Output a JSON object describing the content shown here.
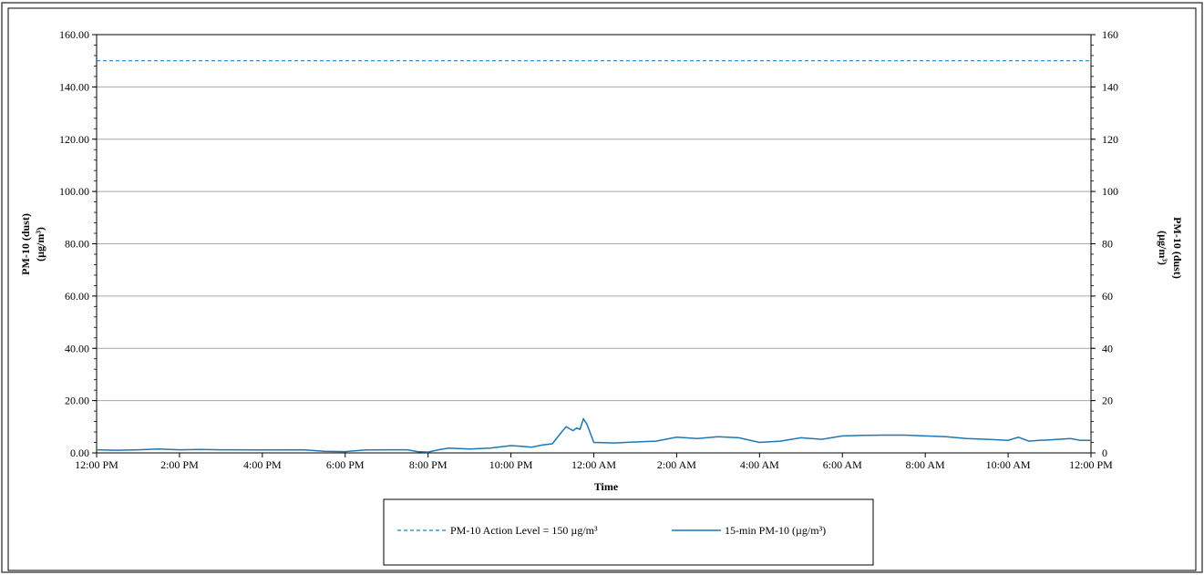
{
  "colors": {
    "series": "#1f77b4",
    "action_level": "#1f7fc8",
    "grid": "#a6a6a6",
    "axis": "#000000",
    "frame": "#4d4d4d"
  },
  "chart_data": {
    "type": "line",
    "xlabel": "Time",
    "ylabel_left": "PM-10 (dust) (µg/m³)",
    "ylabel_left_lines": [
      "PM-10 (dust)",
      "(µg/m³)"
    ],
    "ylabel_right_lines": [
      "PM-10 (dust)",
      "(µg/m³)"
    ],
    "ylim": [
      0,
      160
    ],
    "y_ticks_left": [
      "0.00",
      "20.00",
      "40.00",
      "60.00",
      "80.00",
      "100.00",
      "120.00",
      "140.00",
      "160.00"
    ],
    "y_ticks_right": [
      "0",
      "20",
      "40",
      "60",
      "80",
      "100",
      "120",
      "140",
      "160"
    ],
    "xlim_hours": [
      0,
      24
    ],
    "x_tick_labels": [
      "12:00 PM",
      "2:00 PM",
      "4:00 PM",
      "6:00 PM",
      "8:00 PM",
      "10:00 PM",
      "12:00 AM",
      "2:00 AM",
      "4:00 AM",
      "6:00 AM",
      "8:00 AM",
      "10:00 AM",
      "12:00 PM"
    ],
    "grid": true,
    "legend_position": "bottom-center",
    "series": [
      {
        "name": "PM-10 Action Level = 150 µg/m³",
        "style": "dashed",
        "x": [
          "12:00 PM",
          "12:00 PM (next day)"
        ],
        "values": [
          150,
          150
        ]
      },
      {
        "name": "15-min PM-10 (µg/m³)",
        "style": "solid",
        "x": [
          "12:00 PM",
          "12:30 PM",
          "1:00 PM",
          "1:30 PM",
          "2:00 PM",
          "2:30 PM",
          "3:00 PM",
          "4:00 PM",
          "5:00 PM",
          "5:30 PM",
          "6:00 PM",
          "6:30 PM",
          "7:00 PM",
          "7:30 PM",
          "7:45 PM",
          "8:00 PM",
          "8:15 PM",
          "8:30 PM",
          "9:00 PM",
          "9:30 PM",
          "10:00 PM",
          "10:15 PM",
          "10:30 PM",
          "10:45 PM",
          "11:00 PM",
          "11:15 PM",
          "11:20 PM",
          "11:30 PM",
          "11:35 PM",
          "11:40 PM",
          "11:45 PM",
          "11:50 PM",
          "12:00 AM",
          "12:30 AM",
          "1:00 AM",
          "1:30 AM",
          "2:00 AM",
          "2:30 AM",
          "3:00 AM",
          "3:30 AM",
          "4:00 AM",
          "4:30 AM",
          "5:00 AM",
          "5:30 AM",
          "6:00 AM",
          "6:30 AM",
          "7:00 AM",
          "7:30 AM",
          "8:00 AM",
          "8:30 AM",
          "9:00 AM",
          "9:30 AM",
          "10:00 AM",
          "10:15 AM",
          "10:30 AM",
          "10:45 AM",
          "11:00 AM",
          "11:30 AM",
          "11:45 AM",
          "12:00 PM"
        ],
        "values": [
          1.2,
          1.0,
          1.2,
          1.5,
          1.2,
          1.3,
          1.2,
          1.1,
          1.2,
          0.6,
          0.5,
          1.1,
          1.2,
          1.2,
          0.5,
          0.3,
          1.2,
          1.8,
          1.5,
          1.8,
          2.8,
          2.5,
          2.2,
          3.0,
          3.5,
          8.5,
          10.0,
          8.5,
          9.5,
          9.0,
          13.0,
          11.0,
          4.0,
          3.8,
          4.2,
          4.5,
          6.0,
          5.5,
          6.2,
          5.8,
          4.0,
          4.5,
          5.8,
          5.2,
          6.5,
          6.7,
          6.8,
          6.8,
          6.5,
          6.2,
          5.5,
          5.2,
          4.8,
          6.0,
          4.5,
          4.8,
          5.0,
          5.5,
          4.8,
          4.8
        ]
      }
    ]
  }
}
